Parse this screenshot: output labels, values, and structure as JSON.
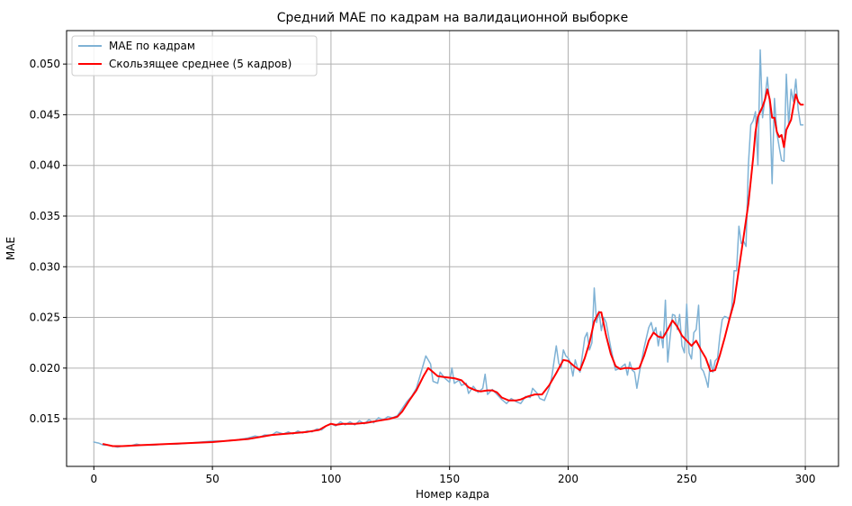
{
  "chart_data": {
    "type": "line",
    "title": "Средний MAE по кадрам на валидационной выборке",
    "xlabel": "Номер кадра",
    "ylabel": "MAE",
    "xlim": [
      -11.5,
      314
    ],
    "ylim": [
      0.0103,
      0.0533
    ],
    "xticks": [
      0,
      50,
      100,
      150,
      200,
      250,
      300
    ],
    "yticks": [
      0.015,
      0.02,
      0.025,
      0.03,
      0.035,
      0.04,
      0.045,
      0.05
    ],
    "ytick_labels": [
      "0.015",
      "0.020",
      "0.025",
      "0.030",
      "0.035",
      "0.040",
      "0.045",
      "0.050"
    ],
    "grid": true,
    "legend_position": "top-left",
    "series": [
      {
        "name": "MAE по кадрам",
        "color": "#7fb2d5",
        "points": [
          [
            0,
            0.0127
          ],
          [
            2,
            0.0126
          ],
          [
            4,
            0.0124
          ],
          [
            6,
            0.0124
          ],
          [
            8,
            0.0123
          ],
          [
            10,
            0.0122
          ],
          [
            12,
            0.0123
          ],
          [
            15,
            0.0123
          ],
          [
            18,
            0.0125
          ],
          [
            20,
            0.0124
          ],
          [
            25,
            0.0124
          ],
          [
            30,
            0.0125
          ],
          [
            35,
            0.0125
          ],
          [
            40,
            0.0126
          ],
          [
            45,
            0.0127
          ],
          [
            50,
            0.0128
          ],
          [
            55,
            0.0128
          ],
          [
            60,
            0.0129
          ],
          [
            65,
            0.0131
          ],
          [
            68,
            0.0133
          ],
          [
            70,
            0.0132
          ],
          [
            72,
            0.0134
          ],
          [
            75,
            0.0134
          ],
          [
            77,
            0.0137
          ],
          [
            80,
            0.0135
          ],
          [
            82,
            0.0137
          ],
          [
            84,
            0.0135
          ],
          [
            86,
            0.0138
          ],
          [
            88,
            0.0136
          ],
          [
            90,
            0.0138
          ],
          [
            92,
            0.0137
          ],
          [
            94,
            0.014
          ],
          [
            96,
            0.0139
          ],
          [
            98,
            0.0143
          ],
          [
            100,
            0.0145
          ],
          [
            102,
            0.0143
          ],
          [
            104,
            0.0147
          ],
          [
            106,
            0.0144
          ],
          [
            108,
            0.0147
          ],
          [
            110,
            0.0144
          ],
          [
            112,
            0.0148
          ],
          [
            114,
            0.0145
          ],
          [
            116,
            0.0149
          ],
          [
            118,
            0.0146
          ],
          [
            120,
            0.0151
          ],
          [
            122,
            0.0149
          ],
          [
            124,
            0.0152
          ],
          [
            126,
            0.0151
          ],
          [
            128,
            0.0153
          ],
          [
            130,
            0.016
          ],
          [
            132,
            0.0167
          ],
          [
            134,
            0.0172
          ],
          [
            136,
            0.018
          ],
          [
            138,
            0.0196
          ],
          [
            140,
            0.0212
          ],
          [
            142,
            0.0204
          ],
          [
            143,
            0.0187
          ],
          [
            145,
            0.0185
          ],
          [
            146,
            0.0196
          ],
          [
            148,
            0.019
          ],
          [
            150,
            0.0186
          ],
          [
            151,
            0.02
          ],
          [
            152,
            0.0185
          ],
          [
            154,
            0.0188
          ],
          [
            155,
            0.0183
          ],
          [
            157,
            0.0185
          ],
          [
            158,
            0.0175
          ],
          [
            160,
            0.0182
          ],
          [
            162,
            0.0176
          ],
          [
            164,
            0.018
          ],
          [
            165,
            0.0194
          ],
          [
            166,
            0.0174
          ],
          [
            168,
            0.0179
          ],
          [
            170,
            0.0174
          ],
          [
            172,
            0.0169
          ],
          [
            174,
            0.0165
          ],
          [
            176,
            0.017
          ],
          [
            178,
            0.0167
          ],
          [
            180,
            0.0165
          ],
          [
            182,
            0.0172
          ],
          [
            184,
            0.0171
          ],
          [
            185,
            0.018
          ],
          [
            187,
            0.0175
          ],
          [
            188,
            0.017
          ],
          [
            190,
            0.0168
          ],
          [
            192,
            0.018
          ],
          [
            193,
            0.019
          ],
          [
            195,
            0.0222
          ],
          [
            196,
            0.0205
          ],
          [
            197,
            0.02
          ],
          [
            198,
            0.0218
          ],
          [
            199,
            0.0212
          ],
          [
            200,
            0.021
          ],
          [
            201,
            0.0205
          ],
          [
            202,
            0.0192
          ],
          [
            203,
            0.0208
          ],
          [
            204,
            0.02
          ],
          [
            205,
            0.0196
          ],
          [
            207,
            0.023
          ],
          [
            208,
            0.0235
          ],
          [
            209,
            0.0218
          ],
          [
            210,
            0.0225
          ],
          [
            211,
            0.0279
          ],
          [
            212,
            0.0245
          ],
          [
            213,
            0.0256
          ],
          [
            214,
            0.0237
          ],
          [
            215,
            0.025
          ],
          [
            216,
            0.0245
          ],
          [
            218,
            0.022
          ],
          [
            220,
            0.0198
          ],
          [
            222,
            0.02
          ],
          [
            224,
            0.0204
          ],
          [
            225,
            0.0193
          ],
          [
            226,
            0.0206
          ],
          [
            227,
            0.0198
          ],
          [
            228,
            0.0196
          ],
          [
            229,
            0.018
          ],
          [
            230,
            0.0195
          ],
          [
            232,
            0.022
          ],
          [
            234,
            0.024
          ],
          [
            235,
            0.0245
          ],
          [
            236,
            0.0235
          ],
          [
            237,
            0.024
          ],
          [
            238,
            0.0222
          ],
          [
            239,
            0.0236
          ],
          [
            240,
            0.022
          ],
          [
            241,
            0.0267
          ],
          [
            242,
            0.0206
          ],
          [
            243,
            0.023
          ],
          [
            244,
            0.0253
          ],
          [
            245,
            0.0252
          ],
          [
            246,
            0.0238
          ],
          [
            247,
            0.0253
          ],
          [
            248,
            0.0222
          ],
          [
            249,
            0.0215
          ],
          [
            250,
            0.0263
          ],
          [
            251,
            0.0215
          ],
          [
            252,
            0.0209
          ],
          [
            253,
            0.0235
          ],
          [
            254,
            0.0238
          ],
          [
            255,
            0.0262
          ],
          [
            256,
            0.02
          ],
          [
            257,
            0.0197
          ],
          [
            258,
            0.019
          ],
          [
            259,
            0.0181
          ],
          [
            260,
            0.0208
          ],
          [
            261,
            0.0196
          ],
          [
            262,
            0.0207
          ],
          [
            263,
            0.021
          ],
          [
            264,
            0.0232
          ],
          [
            265,
            0.0248
          ],
          [
            266,
            0.0251
          ],
          [
            267,
            0.025
          ],
          [
            268,
            0.0248
          ],
          [
            269,
            0.026
          ],
          [
            270,
            0.0296
          ],
          [
            271,
            0.0296
          ],
          [
            272,
            0.034
          ],
          [
            273,
            0.0323
          ],
          [
            274,
            0.0325
          ],
          [
            275,
            0.032
          ],
          [
            276,
            0.04
          ],
          [
            277,
            0.044
          ],
          [
            278,
            0.0444
          ],
          [
            279,
            0.0453
          ],
          [
            280,
            0.04
          ],
          [
            281,
            0.0514
          ],
          [
            282,
            0.0447
          ],
          [
            283,
            0.0467
          ],
          [
            284,
            0.0487
          ],
          [
            285,
            0.046
          ],
          [
            286,
            0.0382
          ],
          [
            287,
            0.0466
          ],
          [
            288,
            0.0432
          ],
          [
            289,
            0.0418
          ],
          [
            290,
            0.0405
          ],
          [
            291,
            0.0404
          ],
          [
            292,
            0.049
          ],
          [
            293,
            0.044
          ],
          [
            294,
            0.0475
          ],
          [
            295,
            0.0463
          ],
          [
            296,
            0.0485
          ],
          [
            297,
            0.0455
          ],
          [
            298,
            0.044
          ],
          [
            299,
            0.044
          ]
        ]
      },
      {
        "name": "Скользящее среднее (5 кадров)",
        "color": "#ff0000",
        "points": [
          [
            4,
            0.0125
          ],
          [
            8,
            0.0123
          ],
          [
            12,
            0.0123
          ],
          [
            20,
            0.0124
          ],
          [
            30,
            0.0125
          ],
          [
            40,
            0.0126
          ],
          [
            50,
            0.0127
          ],
          [
            60,
            0.0129
          ],
          [
            65,
            0.013
          ],
          [
            70,
            0.0132
          ],
          [
            75,
            0.0134
          ],
          [
            80,
            0.0135
          ],
          [
            85,
            0.0136
          ],
          [
            90,
            0.0137
          ],
          [
            95,
            0.0139
          ],
          [
            98,
            0.0143
          ],
          [
            100,
            0.0145
          ],
          [
            102,
            0.0144
          ],
          [
            105,
            0.0145
          ],
          [
            110,
            0.0145
          ],
          [
            115,
            0.0146
          ],
          [
            120,
            0.0148
          ],
          [
            125,
            0.015
          ],
          [
            128,
            0.0152
          ],
          [
            130,
            0.0157
          ],
          [
            133,
            0.0168
          ],
          [
            136,
            0.0178
          ],
          [
            139,
            0.0192
          ],
          [
            141,
            0.02
          ],
          [
            143,
            0.0196
          ],
          [
            145,
            0.0192
          ],
          [
            148,
            0.0191
          ],
          [
            152,
            0.019
          ],
          [
            155,
            0.0188
          ],
          [
            158,
            0.0181
          ],
          [
            161,
            0.0178
          ],
          [
            163,
            0.0177
          ],
          [
            166,
            0.0178
          ],
          [
            168,
            0.0178
          ],
          [
            170,
            0.0176
          ],
          [
            172,
            0.0171
          ],
          [
            175,
            0.0168
          ],
          [
            178,
            0.0168
          ],
          [
            180,
            0.0169
          ],
          [
            183,
            0.0172
          ],
          [
            186,
            0.0174
          ],
          [
            189,
            0.0174
          ],
          [
            192,
            0.0183
          ],
          [
            195,
            0.0195
          ],
          [
            198,
            0.0208
          ],
          [
            200,
            0.0207
          ],
          [
            203,
            0.0201
          ],
          [
            205,
            0.0198
          ],
          [
            207,
            0.021
          ],
          [
            209,
            0.0225
          ],
          [
            211,
            0.0246
          ],
          [
            213,
            0.0255
          ],
          [
            214,
            0.0255
          ],
          [
            216,
            0.0232
          ],
          [
            218,
            0.0214
          ],
          [
            220,
            0.0202
          ],
          [
            222,
            0.0199
          ],
          [
            224,
            0.02
          ],
          [
            226,
            0.02
          ],
          [
            228,
            0.0199
          ],
          [
            230,
            0.02
          ],
          [
            232,
            0.0212
          ],
          [
            234,
            0.0227
          ],
          [
            236,
            0.0235
          ],
          [
            238,
            0.0231
          ],
          [
            240,
            0.023
          ],
          [
            242,
            0.0238
          ],
          [
            244,
            0.0247
          ],
          [
            246,
            0.0241
          ],
          [
            248,
            0.0232
          ],
          [
            250,
            0.0227
          ],
          [
            252,
            0.0222
          ],
          [
            254,
            0.0227
          ],
          [
            256,
            0.0218
          ],
          [
            258,
            0.021
          ],
          [
            260,
            0.0197
          ],
          [
            262,
            0.0198
          ],
          [
            264,
            0.0213
          ],
          [
            266,
            0.023
          ],
          [
            268,
            0.0248
          ],
          [
            270,
            0.0265
          ],
          [
            272,
            0.0298
          ],
          [
            274,
            0.033
          ],
          [
            276,
            0.0362
          ],
          [
            278,
            0.0407
          ],
          [
            279,
            0.0433
          ],
          [
            280,
            0.0448
          ],
          [
            282,
            0.0458
          ],
          [
            283,
            0.0465
          ],
          [
            284,
            0.0475
          ],
          [
            285,
            0.0465
          ],
          [
            286,
            0.0447
          ],
          [
            287,
            0.0447
          ],
          [
            288,
            0.0433
          ],
          [
            289,
            0.0428
          ],
          [
            290,
            0.043
          ],
          [
            291,
            0.0418
          ],
          [
            292,
            0.0435
          ],
          [
            294,
            0.0445
          ],
          [
            295,
            0.0458
          ],
          [
            296,
            0.047
          ],
          [
            297,
            0.0463
          ],
          [
            298,
            0.046
          ],
          [
            299,
            0.046
          ]
        ]
      }
    ]
  }
}
